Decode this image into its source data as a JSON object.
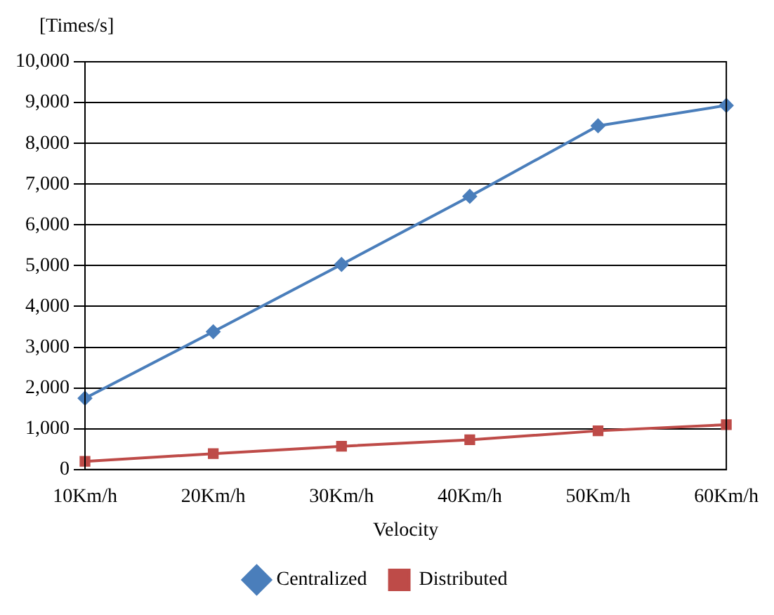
{
  "chart_data": {
    "type": "line",
    "ylabel": "[Times/s]",
    "xlabel": "Velocity",
    "categories": [
      "10Km/h",
      "20Km/h",
      "30Km/h",
      "40Km/h",
      "50Km/h",
      "60Km/h"
    ],
    "series": [
      {
        "name": "Centralized",
        "color": "#4a7ebb",
        "marker": "diamond",
        "values": [
          1750,
          3380,
          5030,
          6700,
          8430,
          8930
        ]
      },
      {
        "name": "Distributed",
        "color": "#be4b48",
        "marker": "square",
        "values": [
          200,
          390,
          570,
          730,
          950,
          1100
        ]
      }
    ],
    "ylim": [
      0,
      10000
    ],
    "yticks": [
      0,
      {
        "value": 1000,
        "label": "1,000"
      },
      {
        "value": 2000,
        "label": "2,000"
      },
      {
        "value": 3000,
        "label": "3,000"
      },
      {
        "value": 4000,
        "label": "4,000"
      },
      {
        "value": 5000,
        "label": "5,000"
      },
      {
        "value": 6000,
        "label": "6,000"
      },
      {
        "value": 7000,
        "label": "7,000"
      },
      {
        "value": 8000,
        "label": "8,000"
      },
      {
        "value": 9000,
        "label": "9,000"
      },
      {
        "value": 10000,
        "label": "10,000"
      }
    ],
    "grid": "y",
    "legend": "bottom",
    "line_style": "solid"
  }
}
